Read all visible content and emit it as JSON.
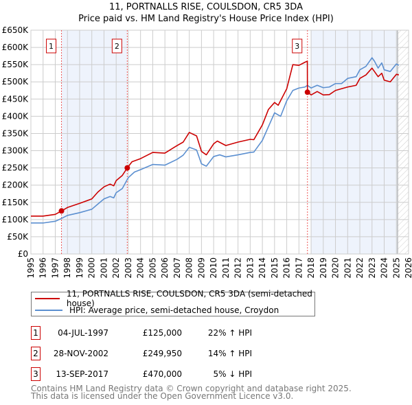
{
  "chart_data": {
    "type": "line",
    "title": "11, PORTNALLS RISE, COULSDON, CR5 3DA",
    "subtitle": "Price paid vs. HM Land Registry's House Price Index (HPI)",
    "xlim": [
      1995,
      2026
    ],
    "ylim": [
      0,
      650000
    ],
    "grid": true,
    "x_ticks": [
      "1995",
      "1996",
      "1997",
      "1998",
      "1999",
      "2000",
      "2001",
      "2002",
      "2003",
      "2004",
      "2005",
      "2006",
      "2007",
      "2008",
      "2009",
      "2010",
      "2011",
      "2012",
      "2013",
      "2014",
      "2015",
      "2016",
      "2017",
      "2018",
      "2019",
      "2020",
      "2021",
      "2022",
      "2023",
      "2024",
      "2025",
      "2026"
    ],
    "y_ticks": [
      "£0",
      "£50K",
      "£100K",
      "£150K",
      "£200K",
      "£250K",
      "£300K",
      "£350K",
      "£400K",
      "£450K",
      "£500K",
      "£550K",
      "£600K",
      "£650K"
    ],
    "colors": {
      "property": "#cc0000",
      "hpi": "#5b8fd0",
      "shade": "#eef3fc"
    },
    "shaded_ranges": [
      [
        1997.51,
        2002.91
      ],
      [
        2018.0,
        2025.1
      ]
    ],
    "hatched_from": 2025.1,
    "series": [
      {
        "name": "11, PORTNALLS RISE, COULSDON, CR5 3DA (semi-detached house)",
        "x": [
          1995,
          1996,
          1997,
          1997.51,
          1998,
          1999,
          2000,
          2000.5,
          2001,
          2001.5,
          2001.8,
          2002,
          2002.5,
          2002.91,
          2003.3,
          2004,
          2005,
          2006,
          2007,
          2007.5,
          2008,
          2008.6,
          2009,
          2009.4,
          2010,
          2010.3,
          2011,
          2012,
          2013,
          2013.3,
          2014,
          2014.5,
          2015,
          2015.3,
          2016,
          2016.5,
          2017,
          2017.5,
          2017.69,
          2017.7,
          2018,
          2018.5,
          2019,
          2019.5,
          2020,
          2021,
          2021.7,
          2022,
          2022.5,
          2023,
          2023.2,
          2023.5,
          2023.8,
          2024,
          2024.5,
          2025,
          2025.2
        ],
        "y": [
          110,
          110,
          115,
          125,
          135,
          147,
          160,
          180,
          195,
          203,
          198,
          213,
          228,
          250,
          268,
          277,
          295,
          293,
          315,
          325,
          353,
          343,
          298,
          288,
          320,
          328,
          315,
          325,
          333,
          332,
          375,
          420,
          440,
          432,
          480,
          550,
          548,
          557,
          560,
          470,
          462,
          472,
          462,
          463,
          475,
          485,
          490,
          510,
          520,
          540,
          530,
          515,
          525,
          505,
          500,
          522,
          520
        ]
      },
      {
        "name": "HPI: Average price, semi-detached house, Croydon",
        "x": [
          1995,
          1996,
          1997,
          1997.5,
          1998,
          1999,
          2000,
          2000.5,
          2001,
          2001.5,
          2001.8,
          2002,
          2002.5,
          2003,
          2003.5,
          2004,
          2005,
          2006,
          2007,
          2007.5,
          2008,
          2008.6,
          2009,
          2009.4,
          2010,
          2010.5,
          2011,
          2012,
          2013,
          2013.3,
          2014,
          2014.5,
          2015,
          2015.5,
          2016,
          2016.5,
          2017,
          2017.5,
          2017.7,
          2018,
          2018.5,
          2019,
          2019.5,
          2020,
          2020.5,
          2021,
          2021.7,
          2022,
          2022.5,
          2023,
          2023.2,
          2023.5,
          2023.8,
          2024,
          2024.5,
          2025,
          2025.2
        ],
        "y": [
          90,
          90,
          95,
          103,
          112,
          120,
          130,
          145,
          160,
          167,
          163,
          178,
          190,
          222,
          238,
          245,
          260,
          258,
          275,
          287,
          310,
          302,
          262,
          255,
          283,
          288,
          282,
          288,
          295,
          296,
          330,
          370,
          410,
          400,
          445,
          475,
          482,
          485,
          490,
          482,
          490,
          483,
          485,
          495,
          495,
          510,
          515,
          535,
          545,
          570,
          560,
          540,
          555,
          535,
          530,
          552,
          548
        ]
      }
    ],
    "sales": [
      {
        "label": "1",
        "x": 1997.51,
        "y": 125
      },
      {
        "label": "2",
        "x": 2002.91,
        "y": 249.95
      },
      {
        "label": "3",
        "x": 2017.7,
        "y": 470
      }
    ],
    "y_units_note": "series y values in £K"
  },
  "header": {
    "title": "11, PORTNALLS RISE, COULSDON, CR5 3DA",
    "subtitle": "Price paid vs. HM Land Registry's House Price Index (HPI)"
  },
  "legend": {
    "property": "11, PORTNALLS RISE, COULSDON, CR5 3DA (semi-detached house)",
    "hpi": "HPI: Average price, semi-detached house, Croydon"
  },
  "transactions": [
    {
      "num": "1",
      "date": "04-JUL-1997",
      "price": "£125,000",
      "hpi": "22% ↑ HPI"
    },
    {
      "num": "2",
      "date": "28-NOV-2002",
      "price": "£249,950",
      "hpi": "14% ↑ HPI"
    },
    {
      "num": "3",
      "date": "13-SEP-2017",
      "price": "£470,000",
      "hpi": "5% ↓ HPI"
    }
  ],
  "footer": {
    "line1": "Contains HM Land Registry data © Crown copyright and database right 2025.",
    "line2": "This data is licensed under the Open Government Licence v3.0."
  }
}
